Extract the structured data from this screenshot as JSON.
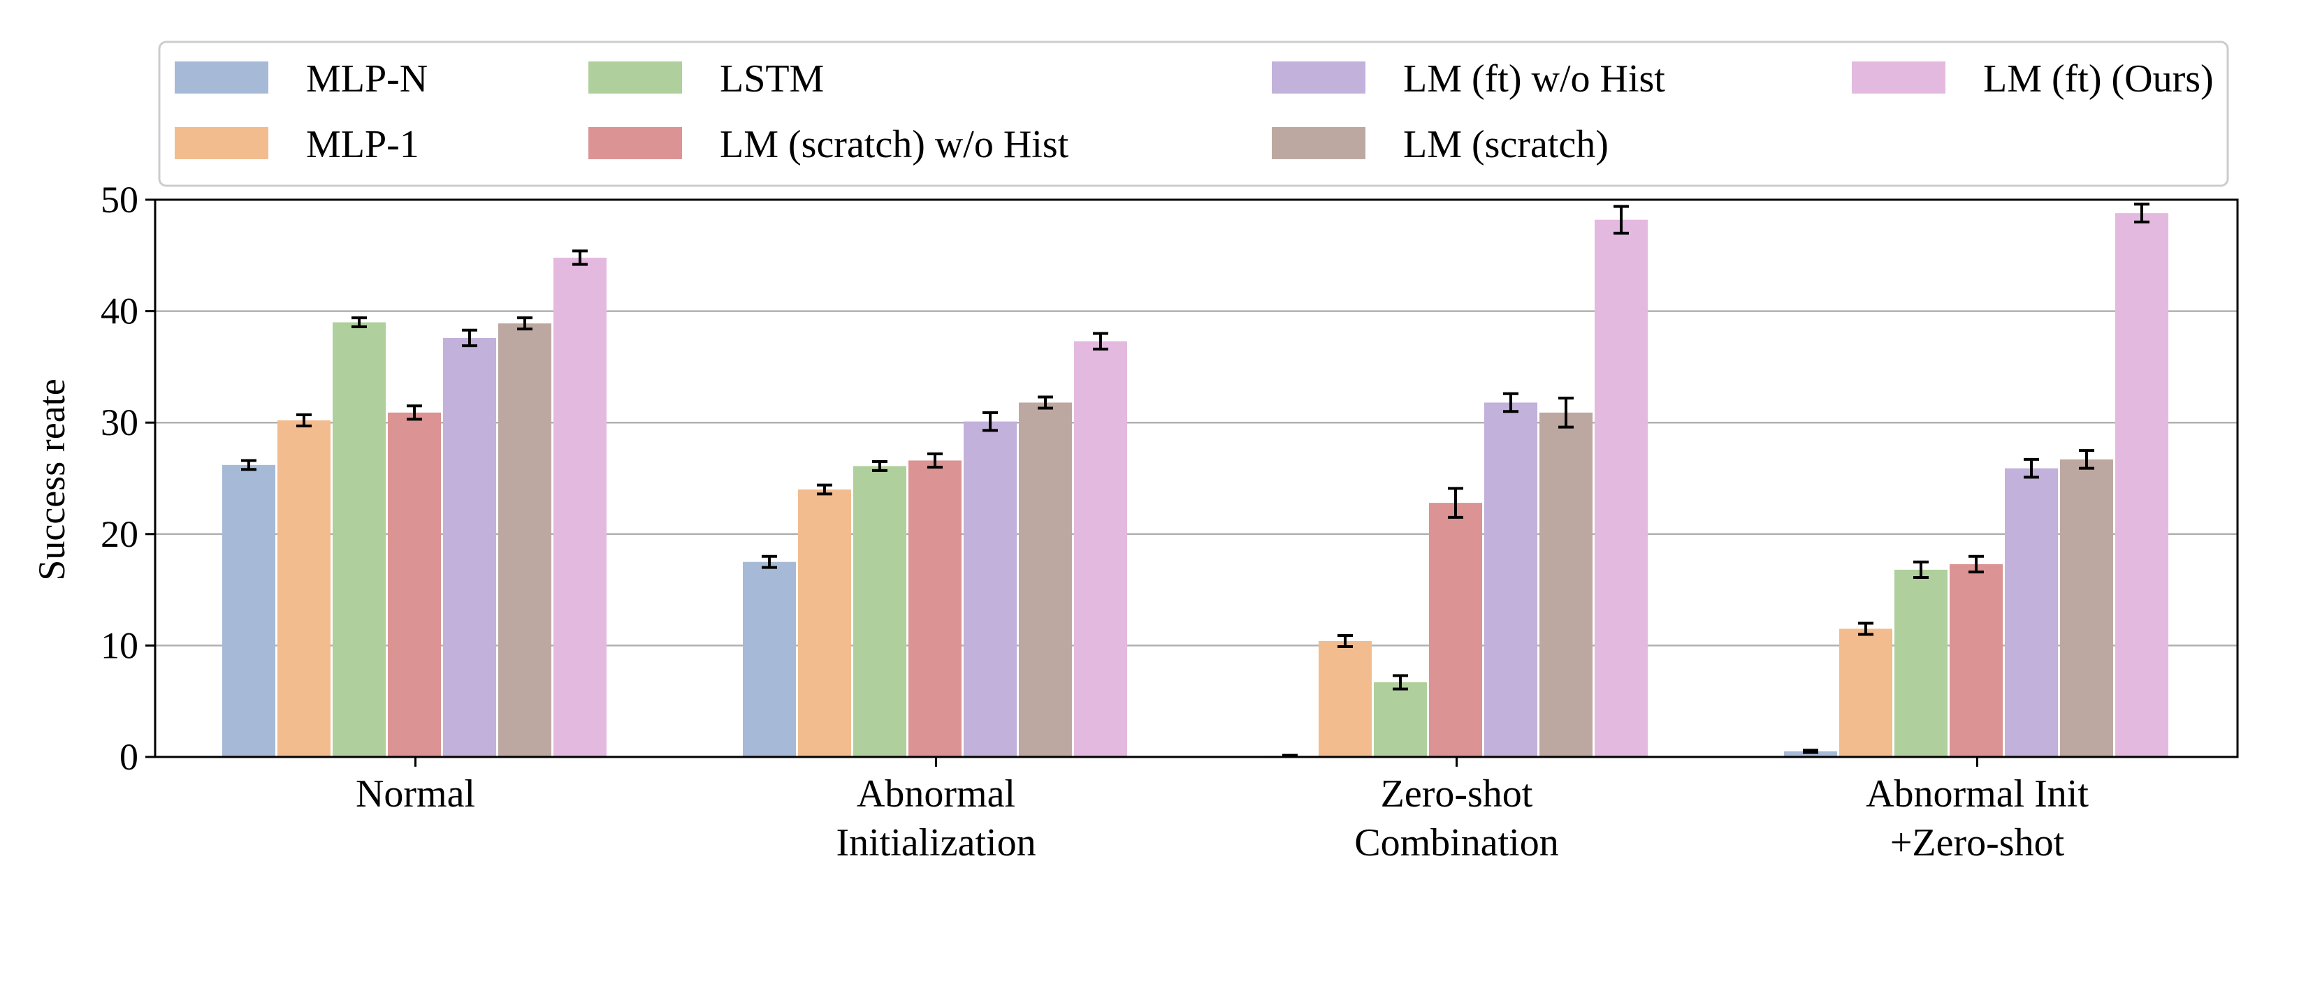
{
  "chart_data": {
    "type": "bar",
    "ylabel": "Success reate",
    "ylim": [
      0,
      50
    ],
    "yticks": [
      0,
      10,
      20,
      30,
      40,
      50
    ],
    "grid": "horizontal",
    "legend_position": "top",
    "categories": [
      [
        "Normal"
      ],
      [
        "Abnormal",
        "Initialization"
      ],
      [
        "Zero-shot",
        "Combination"
      ],
      [
        "Abnormal Init",
        "+Zero-shot"
      ]
    ],
    "series": [
      {
        "name": "MLP-N",
        "color": "#a6bad7",
        "values": [
          26.2,
          17.5,
          0.1,
          0.5
        ],
        "errors": [
          0.4,
          0.5,
          0.05,
          0.1
        ]
      },
      {
        "name": "MLP-1",
        "color": "#f2bc8f",
        "values": [
          30.2,
          24.0,
          10.4,
          11.5
        ],
        "errors": [
          0.5,
          0.4,
          0.5,
          0.5
        ]
      },
      {
        "name": "LSTM",
        "color": "#afd09c",
        "values": [
          39.0,
          26.1,
          6.7,
          16.8
        ],
        "errors": [
          0.4,
          0.4,
          0.6,
          0.7
        ]
      },
      {
        "name": "LM (scratch) w/o Hist",
        "color": "#db9393",
        "values": [
          30.9,
          26.6,
          22.8,
          17.3
        ],
        "errors": [
          0.6,
          0.6,
          1.3,
          0.7
        ]
      },
      {
        "name": "LM (ft) w/o Hist",
        "color": "#c2b1db",
        "values": [
          37.6,
          30.1,
          31.8,
          25.9
        ],
        "errors": [
          0.7,
          0.8,
          0.8,
          0.8
        ]
      },
      {
        "name": "LM (scratch)",
        "color": "#bda8a1",
        "values": [
          38.9,
          31.8,
          30.9,
          26.7
        ],
        "errors": [
          0.5,
          0.5,
          1.3,
          0.8
        ]
      },
      {
        "name": "LM (ft) (Ours)",
        "color": "#e4b9df",
        "values": [
          44.8,
          37.3,
          48.2,
          48.8
        ],
        "errors": [
          0.6,
          0.7,
          1.2,
          0.8
        ]
      }
    ]
  }
}
